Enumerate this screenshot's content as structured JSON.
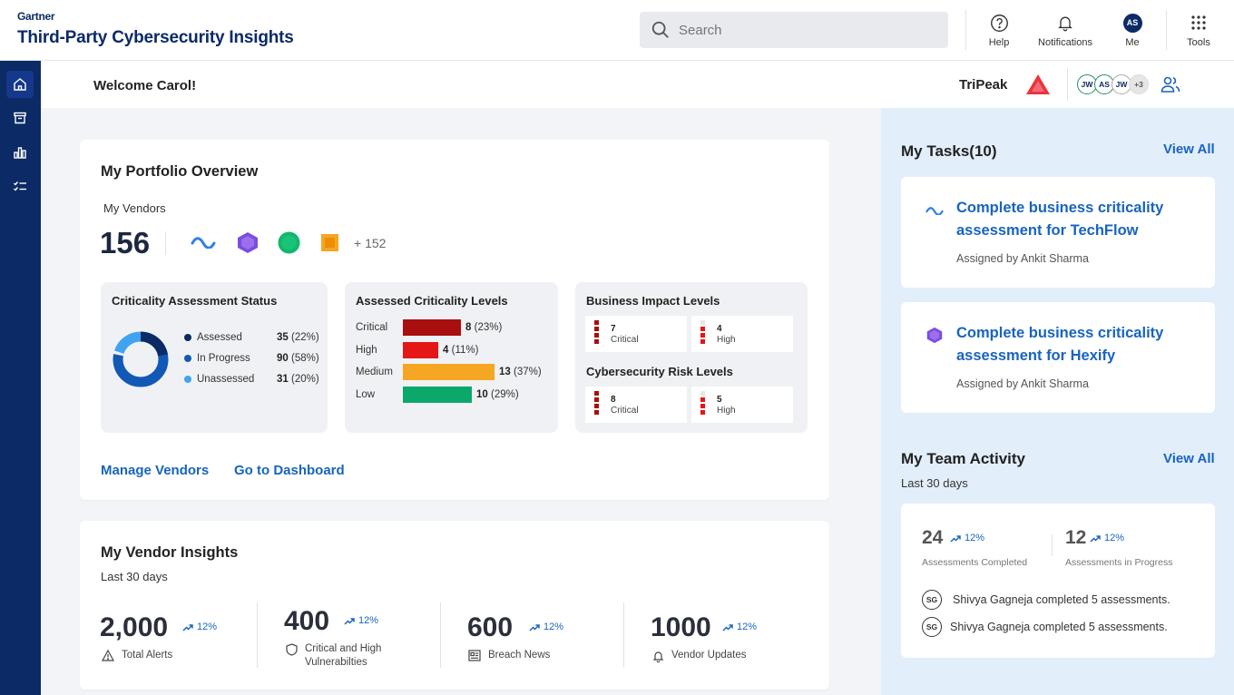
{
  "header": {
    "brand": "Gartner",
    "app_title": "Third-Party Cybersecurity Insights",
    "search_placeholder": "Search",
    "help_label": "Help",
    "notifications_label": "Notifications",
    "me_label": "Me",
    "me_initials": "AS",
    "tools_label": "Tools"
  },
  "subheader": {
    "welcome": "Welcome Carol!",
    "company": "TriPeak",
    "team_avatars": [
      "JW",
      "AS",
      "JW"
    ],
    "team_more": "+3"
  },
  "portfolio": {
    "title": "My Portfolio Overview",
    "vendors_label": "My Vendors",
    "vendor_count": "156",
    "vendor_more": "+ 152",
    "criticality_status": {
      "title": "Criticality Assessment Status",
      "items": [
        {
          "label": "Assessed",
          "count": "35",
          "pct": "(22%)",
          "color": "#0b2a66"
        },
        {
          "label": "In Progress",
          "count": "90",
          "pct": "(58%)",
          "color": "#1259b5"
        },
        {
          "label": "Unassessed",
          "count": "31",
          "pct": "(20%)",
          "color": "#3fa3f2"
        }
      ]
    },
    "criticality_levels": {
      "title": "Assessed Criticality Levels",
      "items": [
        {
          "label": "Critical",
          "count": "8",
          "pct": "(23%)",
          "color": "#a80f0f"
        },
        {
          "label": "High",
          "count": "4",
          "pct": "(11%)",
          "color": "#e51616"
        },
        {
          "label": "Medium",
          "count": "13",
          "pct": "(37%)",
          "color": "#f5a623"
        },
        {
          "label": "Low",
          "count": "10",
          "pct": "(29%)",
          "color": "#0ba86b"
        }
      ]
    },
    "business_impact": {
      "title": "Business Impact Levels",
      "items": [
        {
          "count": "7",
          "label": "Critical"
        },
        {
          "count": "4",
          "label": "High"
        }
      ]
    },
    "cyber_risk": {
      "title": "Cybersecurity Risk Levels",
      "items": [
        {
          "count": "8",
          "label": "Critical"
        },
        {
          "count": "5",
          "label": "High"
        }
      ]
    },
    "manage_vendors": "Manage Vendors",
    "go_dashboard": "Go to Dashboard"
  },
  "insights": {
    "title": "My Vendor Insights",
    "period": "Last 30 days",
    "items": [
      {
        "value": "2,000",
        "trend": "12%",
        "label": "Total Alerts"
      },
      {
        "value": "400",
        "trend": "12%",
        "label": "Critical and High Vulnerabilties"
      },
      {
        "value": "600",
        "trend": "12%",
        "label": "Breach News"
      },
      {
        "value": "1000",
        "trend": "12%",
        "label": "Vendor Updates"
      }
    ]
  },
  "tasks": {
    "title": "My Tasks(10)",
    "view_all": "View All",
    "items": [
      {
        "title": "Complete business criticality assessment for TechFlow",
        "assigned": "Assigned by Ankit Sharma"
      },
      {
        "title": "Complete business criticality assessment for Hexify",
        "assigned": "Assigned by Ankit Sharma"
      }
    ]
  },
  "team": {
    "title": "My Team Activity",
    "view_all": "View All",
    "period": "Last 30 days",
    "completed_value": "24",
    "completed_trend": "12%",
    "completed_label": "Assessments Completed",
    "progress_value": "12",
    "progress_trend": "12%",
    "progress_label": "Assessments in Progress",
    "activity": [
      {
        "initials": "SG",
        "text": "Shivya Gagneja completed 5 assessments."
      },
      {
        "initials": "SG",
        "text": "Shivya Gagneja completed 5 assessments."
      }
    ]
  }
}
